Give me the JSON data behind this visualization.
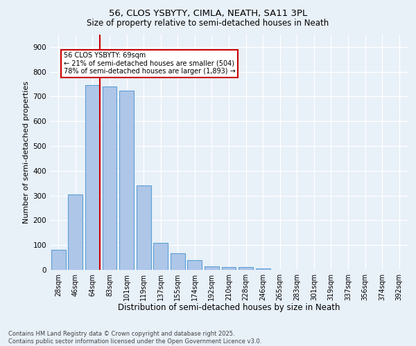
{
  "title1": "56, CLOS YSBYTY, CIMLA, NEATH, SA11 3PL",
  "title2": "Size of property relative to semi-detached houses in Neath",
  "xlabel": "Distribution of semi-detached houses by size in Neath",
  "ylabel": "Number of semi-detached properties",
  "categories": [
    "28sqm",
    "46sqm",
    "64sqm",
    "83sqm",
    "101sqm",
    "119sqm",
    "137sqm",
    "155sqm",
    "174sqm",
    "192sqm",
    "210sqm",
    "228sqm",
    "246sqm",
    "265sqm",
    "283sqm",
    "301sqm",
    "319sqm",
    "337sqm",
    "356sqm",
    "374sqm",
    "392sqm"
  ],
  "values": [
    80,
    305,
    745,
    740,
    725,
    340,
    108,
    68,
    40,
    15,
    12,
    10,
    5,
    0,
    0,
    0,
    0,
    0,
    0,
    0,
    0
  ],
  "bar_color": "#aec6e8",
  "bar_edge_color": "#5a9fd4",
  "vline_x": 2.42,
  "vline_color": "#cc0000",
  "annotation_box_color": "#cc0000",
  "marker_label": "56 CLOS YSBYTY: 69sqm",
  "annotation_line1": "← 21% of semi-detached houses are smaller (504)",
  "annotation_line2": "78% of semi-detached houses are larger (1,893) →",
  "background_color": "#e8f0f8",
  "grid_color": "#ffffff",
  "ylim": [
    0,
    950
  ],
  "yticks": [
    0,
    100,
    200,
    300,
    400,
    500,
    600,
    700,
    800,
    900
  ],
  "footer1": "Contains HM Land Registry data © Crown copyright and database right 2025.",
  "footer2": "Contains public sector information licensed under the Open Government Licence v3.0."
}
